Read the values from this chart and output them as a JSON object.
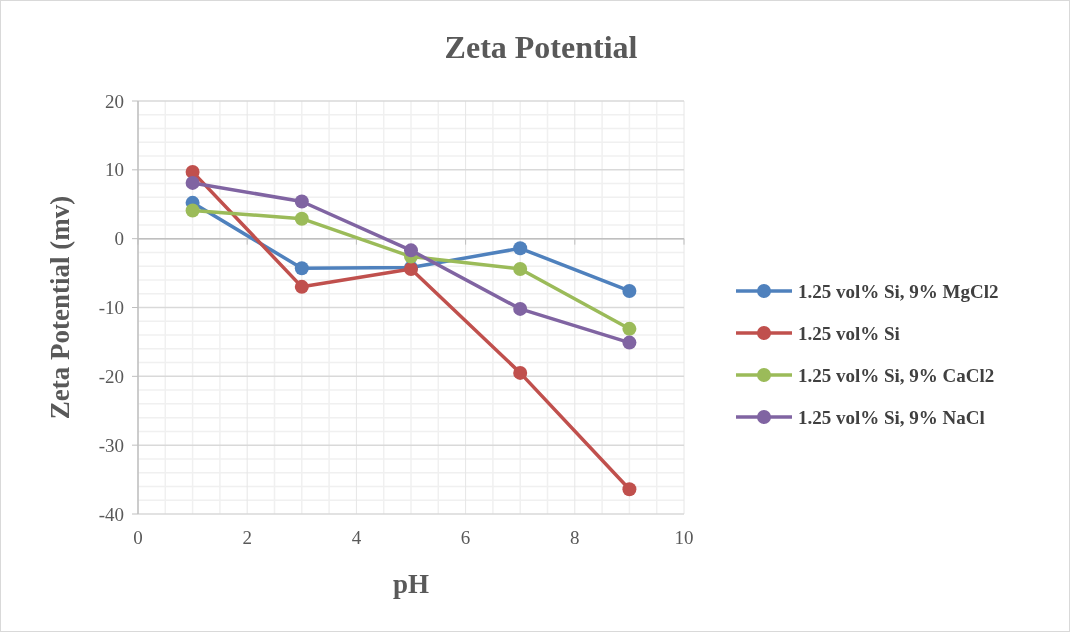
{
  "chart_data": {
    "type": "line",
    "title": "Zeta Potential",
    "xlabel": "pH",
    "ylabel": "Zeta Potential (mv)",
    "x": [
      1,
      3,
      5,
      7,
      9
    ],
    "series": [
      {
        "name": "1.25 vol% Si, 9% MgCl2",
        "color": "#4f81bd",
        "values": [
          5.2,
          -4.3,
          -4.2,
          -1.4,
          -7.6
        ]
      },
      {
        "name": "1.25 vol% Si",
        "color": "#c0504d",
        "values": [
          9.7,
          -7.0,
          -4.4,
          -19.5,
          -36.4
        ]
      },
      {
        "name": "1.25 vol% Si, 9% CaCl2",
        "color": "#9bbb59",
        "values": [
          4.1,
          2.9,
          -2.6,
          -4.4,
          -13.1
        ]
      },
      {
        "name": "1.25 vol% Si, 9% NaCl",
        "color": "#8064a2",
        "values": [
          8.1,
          5.4,
          -1.7,
          -10.2,
          -15.1
        ]
      }
    ],
    "xlim": [
      0,
      10
    ],
    "xticks": [
      0,
      2,
      4,
      6,
      8,
      10
    ],
    "ylim": [
      -40,
      20
    ],
    "yticks": [
      -40,
      -30,
      -20,
      -10,
      0,
      10,
      20
    ],
    "grid": true,
    "legend": "right",
    "marker": "circle",
    "line_style": "solid"
  }
}
